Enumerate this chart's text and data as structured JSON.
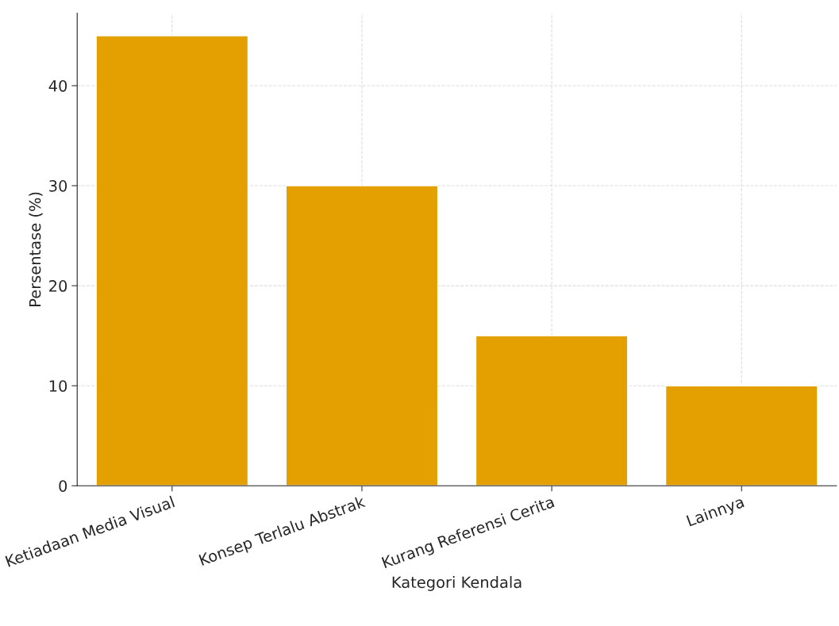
{
  "chart_data": {
    "type": "bar",
    "xlabel": "Kategori Kendala",
    "ylabel": "Persentase (%)",
    "categories": [
      "Ketiadaan Media Visual",
      "Konsep Terlalu Abstrak",
      "Kurang Referensi Cerita",
      "Lainnya"
    ],
    "values": [
      45,
      30,
      15,
      10
    ],
    "color": "#e3a000",
    "ylim": [
      0,
      47.25
    ],
    "yticks": [
      0,
      10,
      20,
      30,
      40
    ],
    "grid": true,
    "legend": false
  }
}
